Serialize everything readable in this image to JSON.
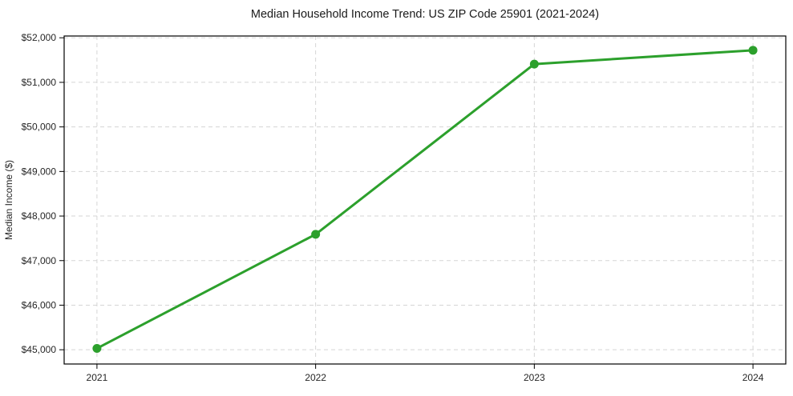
{
  "chart_data": {
    "type": "line",
    "title": "Median Household Income Trend: US ZIP Code 25901 (2021-2024)",
    "xlabel": "",
    "ylabel": "Median Income ($)",
    "x": [
      2021,
      2022,
      2023,
      2024
    ],
    "x_tick_labels": [
      "2021",
      "2022",
      "2023",
      "2024"
    ],
    "series": [
      {
        "name": "Median Household Income",
        "values": [
          45030,
          47590,
          51410,
          51720
        ]
      }
    ],
    "y_ticks": [
      45000,
      46000,
      47000,
      48000,
      49000,
      50000,
      51000,
      52000
    ],
    "y_tick_prefix": "$",
    "xlim": [
      2020.85,
      2024.15
    ],
    "ylim": [
      44680,
      52040
    ],
    "grid": true,
    "legend": "none",
    "line_color": "#2ca02c",
    "marker_color": "#2ca02c",
    "grid_color": "#d5d5d5",
    "spine_color": "#000000",
    "text_color": "#262626",
    "background_color": "#ffffff"
  }
}
